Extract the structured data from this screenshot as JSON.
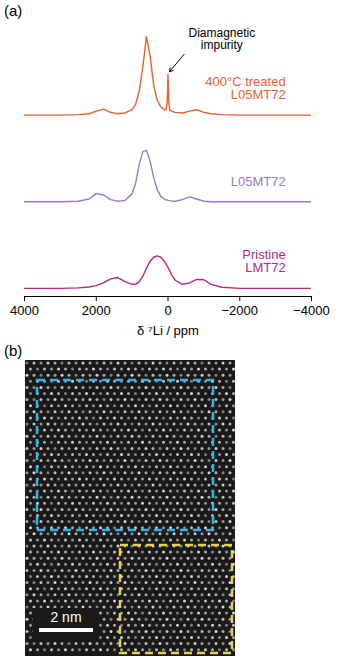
{
  "chart_data": {
    "type": "line",
    "panel": "(a)",
    "xlabel": "δ ⁷Li / ppm",
    "x": [
      4000,
      3500,
      3000,
      2500,
      2200,
      2000,
      1800,
      1600,
      1400,
      1200,
      1000,
      900,
      800,
      700,
      600,
      500,
      400,
      300,
      200,
      100,
      50,
      20,
      0,
      -20,
      -50,
      -100,
      -200,
      -400,
      -600,
      -800,
      -1000,
      -1200,
      -1500,
      -2000,
      -2500,
      -3000,
      -3500,
      -4000
    ],
    "series": [
      {
        "name": "400°C treated L05MT72",
        "color": "#e8612c",
        "values": [
          6.4,
          6.4,
          6.4,
          6.42,
          6.45,
          6.55,
          6.62,
          6.5,
          6.45,
          6.48,
          6.6,
          6.8,
          7.3,
          8.2,
          9.3,
          8.6,
          7.5,
          6.95,
          6.7,
          6.6,
          6.6,
          6.9,
          7.9,
          6.9,
          6.58,
          6.55,
          6.5,
          6.48,
          6.55,
          6.6,
          6.5,
          6.45,
          6.42,
          6.4,
          6.4,
          6.4,
          6.4,
          6.4
        ]
      },
      {
        "name": "L05MT72",
        "color": "#9c79c9",
        "values": [
          3.2,
          3.2,
          3.2,
          3.22,
          3.3,
          3.5,
          3.45,
          3.28,
          3.22,
          3.25,
          3.5,
          3.9,
          4.6,
          5.05,
          5.1,
          4.7,
          4.1,
          3.65,
          3.4,
          3.3,
          3.27,
          3.26,
          3.25,
          3.25,
          3.24,
          3.23,
          3.22,
          3.28,
          3.38,
          3.3,
          3.22,
          3.2,
          3.2,
          3.2,
          3.2,
          3.2,
          3.2,
          3.2
        ]
      },
      {
        "name": "Pristine LMT72",
        "color": "#b8297e",
        "values": [
          0,
          0,
          0,
          0.02,
          0.05,
          0.1,
          0.2,
          0.35,
          0.4,
          0.25,
          0.15,
          0.15,
          0.25,
          0.45,
          0.75,
          1.0,
          1.15,
          1.2,
          1.15,
          1.0,
          0.9,
          0.82,
          0.78,
          0.72,
          0.65,
          0.5,
          0.3,
          0.15,
          0.2,
          0.33,
          0.32,
          0.15,
          0.04,
          0,
          0,
          0,
          0,
          0
        ]
      }
    ],
    "xlim": [
      4000,
      -4000
    ],
    "xticks": [
      4000,
      2000,
      0,
      -2000,
      -4000
    ],
    "ylim": [
      -0.3,
      9.6
    ],
    "tick_labels": "x",
    "annotations": [
      {
        "text": "Diamagnetic impurity",
        "x": 0,
        "y": 7.9
      }
    ]
  },
  "image": {
    "panel": "(b)",
    "scale_bar": "2 nm"
  }
}
